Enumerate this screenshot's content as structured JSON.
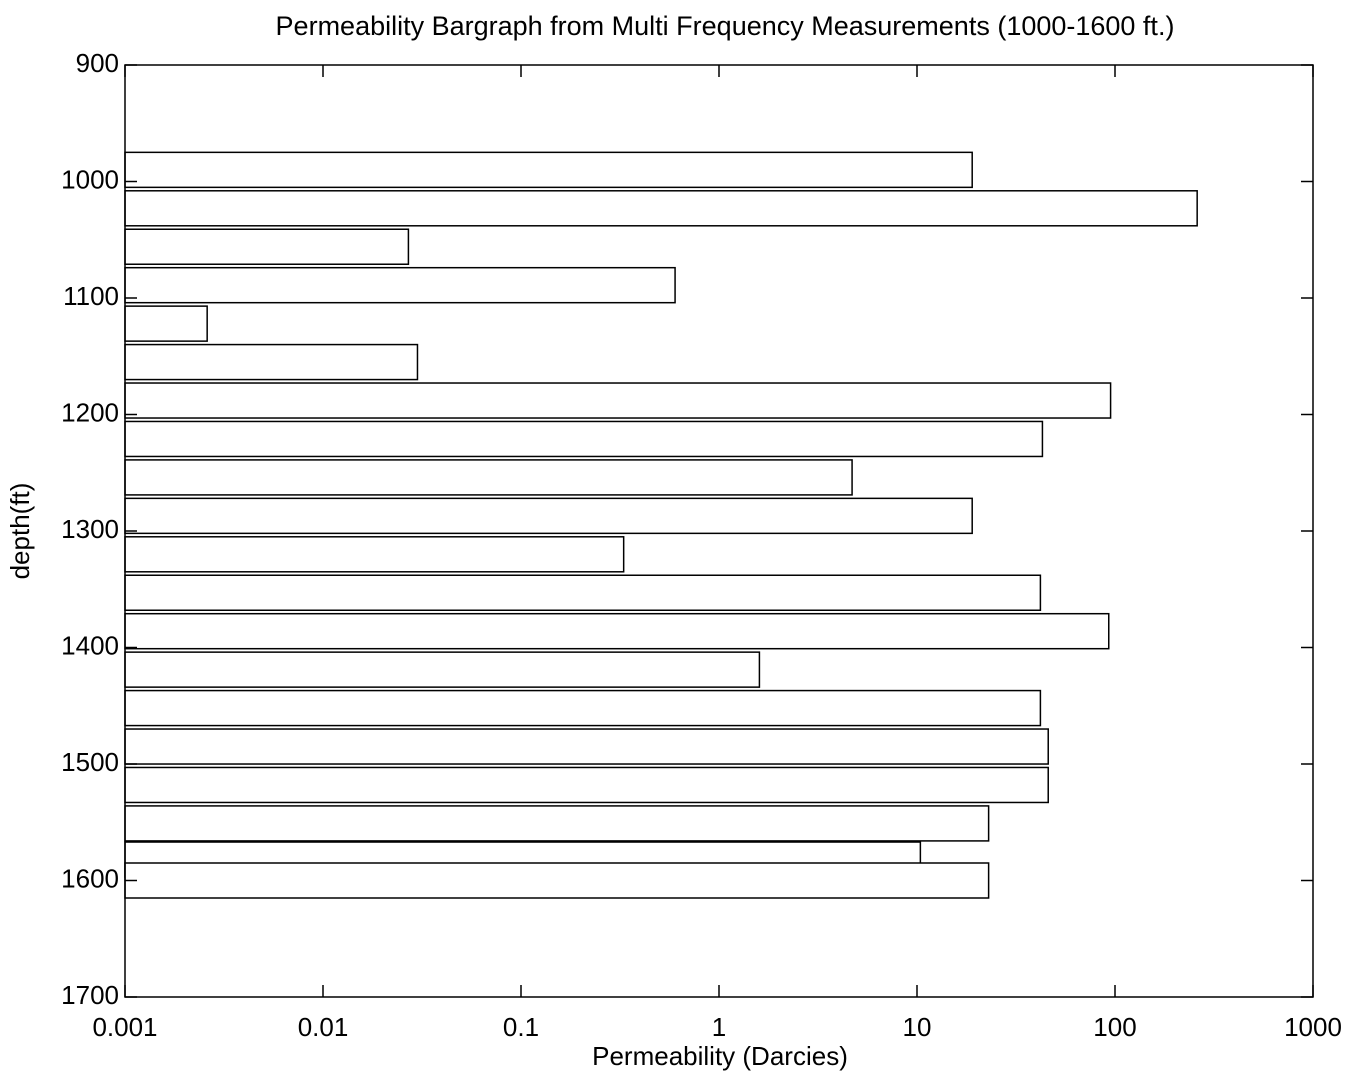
{
  "chart_data": {
    "type": "bar",
    "orientation": "horizontal",
    "title": "Permeability Bargraph from Multi Frequency Measurements (1000-1600 ft.)",
    "xlabel": "Permeability (Darcies)",
    "ylabel": "depth(ft)",
    "x": [
      990,
      1023,
      1056,
      1089,
      1122,
      1155,
      1188,
      1221,
      1254,
      1287,
      1320,
      1353,
      1386,
      1419,
      1452,
      1485,
      1518,
      1551,
      1582,
      1600
    ],
    "values": [
      19,
      260,
      0.027,
      0.6,
      0.0026,
      0.03,
      95,
      43,
      4.7,
      19,
      0.33,
      42,
      93,
      1.6,
      42,
      46,
      46,
      23,
      10.4,
      23
    ],
    "color": "#ffffff",
    "edgecolor": "#000000",
    "xscale": "log",
    "xlim": [
      0.001,
      1000
    ],
    "xticks": [
      0.001,
      0.01,
      0.1,
      1,
      10,
      100,
      1000
    ],
    "ylim": [
      900,
      1700
    ],
    "y_inverted": true,
    "yticks": [
      900,
      1000,
      1100,
      1200,
      1300,
      1400,
      1500,
      1600,
      1700
    ],
    "grid": false
  }
}
